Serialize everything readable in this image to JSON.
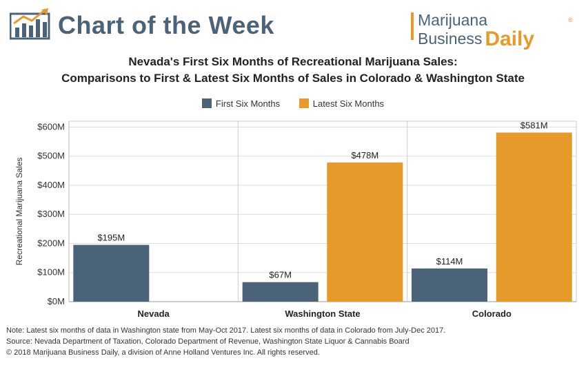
{
  "header": {
    "title": "Chart of the Week",
    "brand_line1": "Marijuana",
    "brand_line2a": "Business",
    "brand_line2b": "Daily",
    "brand_reg": "®"
  },
  "colors": {
    "first": "#4a6378",
    "latest": "#e59a2a",
    "header_text": "#4a6378",
    "grid": "#dddddd"
  },
  "chart_data": {
    "type": "bar",
    "title_line1": "Nevada's First Six Months of Recreational Marijuana Sales:",
    "title_line2": "Comparisons to First & Latest Six Months of Sales in Colorado & Washington State",
    "ylabel": "Recreational Marijuana Sales",
    "xlabel": "",
    "ylim": [
      0,
      620
    ],
    "yticks": [
      0,
      100,
      200,
      300,
      400,
      500,
      600
    ],
    "ytick_labels": [
      "$0M",
      "$100M",
      "$200M",
      "$300M",
      "$400M",
      "$500M",
      "$600M"
    ],
    "categories": [
      "Nevada",
      "Washington State",
      "Colorado"
    ],
    "series": [
      {
        "name": "First Six Months",
        "values": [
          195,
          67,
          114
        ],
        "labels": [
          "$195M",
          "$67M",
          "$114M"
        ]
      },
      {
        "name": "Latest Six Months",
        "values": [
          null,
          478,
          581
        ],
        "labels": [
          "",
          "$478M",
          "$581M"
        ]
      }
    ],
    "legend_position": "top-center",
    "grid": true
  },
  "footer": {
    "note": "Note: Latest six months of data in Washington state from May-Oct 2017. Latest six months of data in Colorado from July-Dec 2017.",
    "source": "Source: Nevada Department of Taxation, Colorado Department of Revenue, Washington State Liquor & Cannabis Board",
    "copyright": "© 2018 Marijuana Business Daily, a division of Anne Holland Ventures Inc. All rights reserved."
  }
}
